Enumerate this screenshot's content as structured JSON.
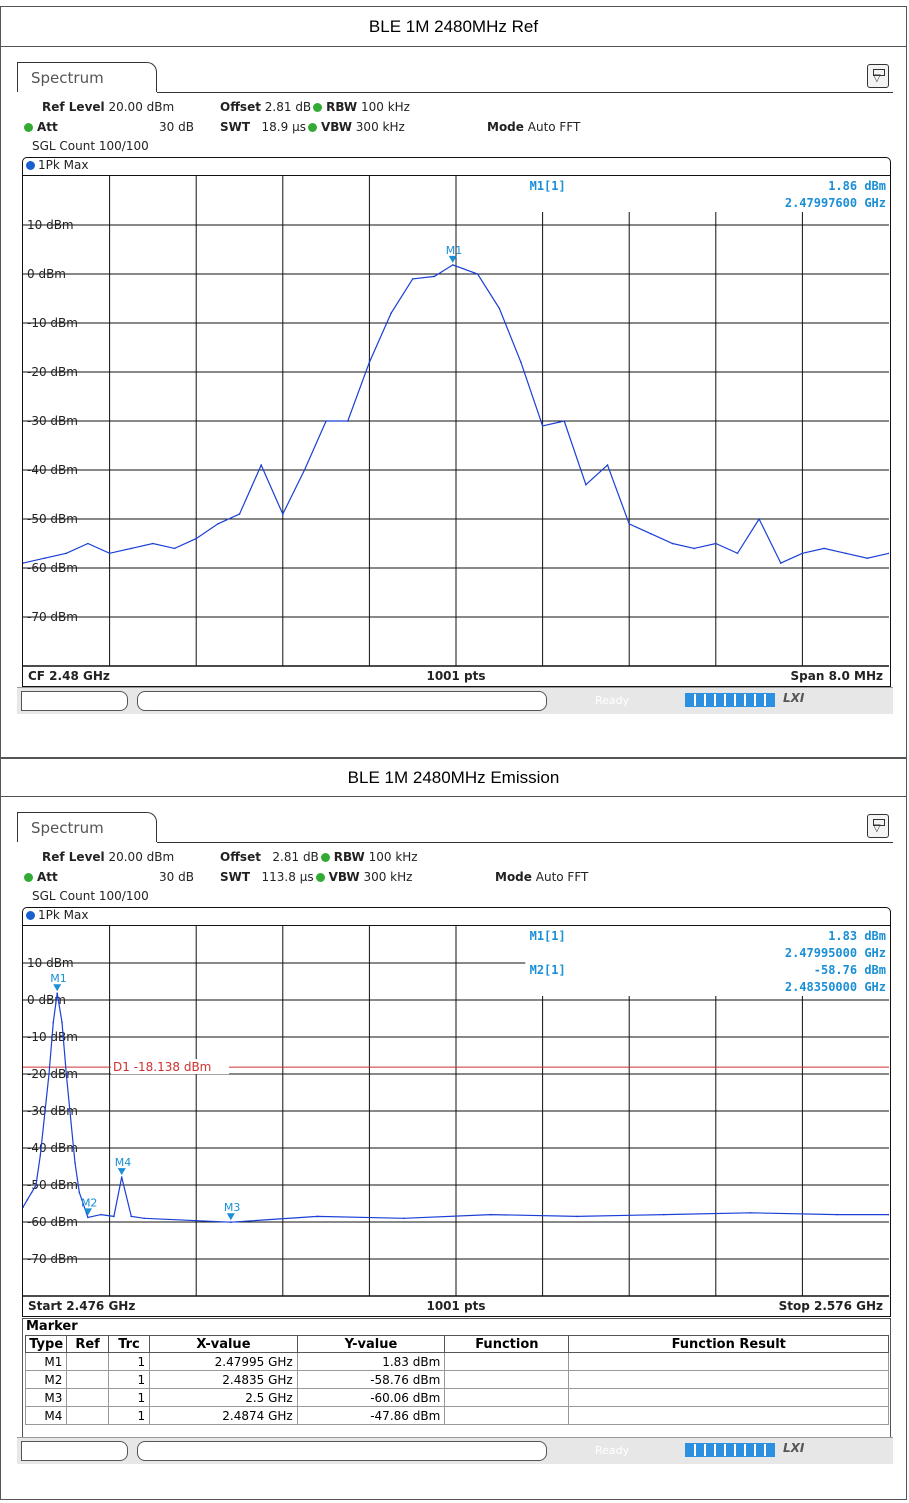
{
  "panels": [
    {
      "caption": "BLE 1M 2480MHz Ref",
      "tab_label": "Spectrum",
      "params": {
        "ref_label": "Ref Level",
        "ref_val": "20.00 dBm",
        "offset_label": "Offset",
        "offset_val": "2.81 dB",
        "rbw_label": "RBW",
        "rbw_val": "100 kHz",
        "att_label": "Att",
        "att_val": "30 dB",
        "swt_label": "SWT",
        "swt_val": "18.9 µs",
        "vbw_label": "VBW",
        "vbw_val": "300 kHz",
        "mode_label": "Mode",
        "mode_val": "Auto FFT",
        "count": "SGL Count 100/100"
      },
      "trace_label": "1Pk Max",
      "footer": {
        "left": "CF 2.48 GHz",
        "center": "1001 pts",
        "right": "Span 8.0 MHz"
      },
      "readout": [
        {
          "name": "M1[1]",
          "value": "1.86 dBm",
          "freq": "2.47997600 GHz"
        }
      ],
      "status": {
        "ready": "Ready",
        "lxi": "LXI"
      }
    },
    {
      "caption": "BLE 1M 2480MHz Emission",
      "tab_label": "Spectrum",
      "params": {
        "ref_label": "Ref Level",
        "ref_val": "20.00 dBm",
        "offset_label": "Offset",
        "offset_val": "2.81 dB",
        "rbw_label": "RBW",
        "rbw_val": "100 kHz",
        "att_label": "Att",
        "att_val": "30 dB",
        "swt_label": "SWT",
        "swt_val": "113.8 µs",
        "vbw_label": "VBW",
        "vbw_val": "300 kHz",
        "mode_label": "Mode",
        "mode_val": "Auto FFT",
        "count": "SGL Count 100/100"
      },
      "trace_label": "1Pk Max",
      "footer": {
        "left": "Start 2.476 GHz",
        "center": "1001 pts",
        "right": "Stop 2.576 GHz"
      },
      "readout": [
        {
          "name": "M1[1]",
          "value": "1.83 dBm",
          "freq": "2.47995000 GHz"
        },
        {
          "name": "M2[1]",
          "value": "-58.76 dBm",
          "freq": "2.48350000 GHz"
        }
      ],
      "marker_table": {
        "title": "Marker",
        "headers": [
          "Type",
          "Ref",
          "Trc",
          "X-value",
          "Y-value",
          "Function",
          "Function Result"
        ],
        "rows": [
          [
            "M1",
            "",
            "1",
            "2.47995 GHz",
            "1.83 dBm",
            "",
            ""
          ],
          [
            "M2",
            "",
            "1",
            "2.4835 GHz",
            "-58.76 dBm",
            "",
            ""
          ],
          [
            "M3",
            "",
            "1",
            "2.5 GHz",
            "-60.06 dBm",
            "",
            ""
          ],
          [
            "M4",
            "",
            "1",
            "2.4874 GHz",
            "-47.86 dBm",
            "",
            ""
          ]
        ]
      },
      "status": {
        "ready": "Ready",
        "lxi": "LXI"
      }
    }
  ],
  "chart_data": [
    {
      "type": "line",
      "title": "BLE 1M 2480MHz Ref",
      "xlabel": "",
      "ylabel": "",
      "xlim": [
        2.476,
        2.484
      ],
      "ylim": [
        -80,
        20
      ],
      "yticks": [
        10,
        0,
        -10,
        -20,
        -30,
        -40,
        -50,
        -60,
        -70
      ],
      "ytick_labels": [
        "10 dBm",
        "0 dBm",
        "-10 dBm",
        "-20 dBm",
        "-30 dBm",
        "-40 dBm",
        "-50 dBm",
        "-60 dBm",
        "-70 dBm"
      ],
      "grid": true,
      "color": "#1a3fd6",
      "series": [
        {
          "x": [
            2.476,
            2.4762,
            2.4764,
            2.4766,
            2.4768,
            2.477,
            2.4772,
            2.4774,
            2.4776,
            2.4778,
            2.478,
            2.4782,
            2.4784,
            2.4786,
            2.4788,
            2.479,
            2.4792,
            2.4794,
            2.4796,
            2.4798,
            2.47997,
            2.4802,
            2.4804,
            2.4806,
            2.4808,
            2.481,
            2.4812,
            2.4814,
            2.4816,
            2.4818,
            2.482,
            2.4822,
            2.4824,
            2.4826,
            2.4828,
            2.483,
            2.4832,
            2.4834,
            2.4836,
            2.4838,
            2.484
          ],
          "y": [
            -59,
            -58,
            -57,
            -55,
            -57,
            -56,
            -55,
            -56,
            -54,
            -51,
            -49,
            -39,
            -49,
            -40,
            -30,
            -30,
            -18,
            -8,
            -1,
            -0.5,
            1.86,
            0,
            -7,
            -18,
            -31,
            -30,
            -43,
            -39,
            -51,
            -53,
            -55,
            -56,
            -55,
            -57,
            -50,
            -59,
            -57,
            -56,
            -57,
            -58,
            -57
          ]
        }
      ],
      "markers": [
        {
          "label": "M1",
          "x": 2.47997,
          "y": 1.86
        }
      ]
    },
    {
      "type": "line",
      "title": "BLE 1M 2480MHz Emission",
      "xlabel": "",
      "ylabel": "",
      "xlim": [
        2.476,
        2.576
      ],
      "ylim": [
        -80,
        20
      ],
      "yticks": [
        10,
        0,
        -10,
        -20,
        -30,
        -40,
        -50,
        -60,
        -70
      ],
      "ytick_labels": [
        "10 dBm",
        "0 dBm",
        "-10 dBm",
        "-20 dBm",
        "-30 dBm",
        "-40 dBm",
        "-50 dBm",
        "-60 dBm",
        "-70 dBm"
      ],
      "grid": true,
      "color": "#1a3fd6",
      "limit_line": {
        "label": "D1 -18.138 dBm",
        "y": -18.138,
        "color": "#d03030"
      },
      "series": [
        {
          "x": [
            2.476,
            2.4765,
            2.477,
            2.4775,
            2.478,
            2.479,
            2.4795,
            2.47995,
            2.4805,
            2.481,
            2.482,
            2.4825,
            2.4835,
            2.485,
            2.4865,
            2.4874,
            2.4885,
            2.49,
            2.5,
            2.51,
            2.52,
            2.53,
            2.54,
            2.55,
            2.56,
            2.57,
            2.576
          ],
          "y": [
            -56,
            -54,
            -52,
            -50,
            -42,
            -20,
            -6,
            1.83,
            -6,
            -20,
            -44,
            -52,
            -58.76,
            -58,
            -58.5,
            -47.86,
            -58.5,
            -59,
            -60.06,
            -58.5,
            -59,
            -58,
            -58.5,
            -58,
            -57.5,
            -58,
            -58
          ]
        }
      ],
      "markers": [
        {
          "label": "M1",
          "x": 2.47995,
          "y": 1.83
        },
        {
          "label": "M2",
          "x": 2.4835,
          "y": -58.76
        },
        {
          "label": "M3",
          "x": 2.5,
          "y": -60.06
        },
        {
          "label": "M4",
          "x": 2.4874,
          "y": -47.86
        }
      ]
    }
  ]
}
